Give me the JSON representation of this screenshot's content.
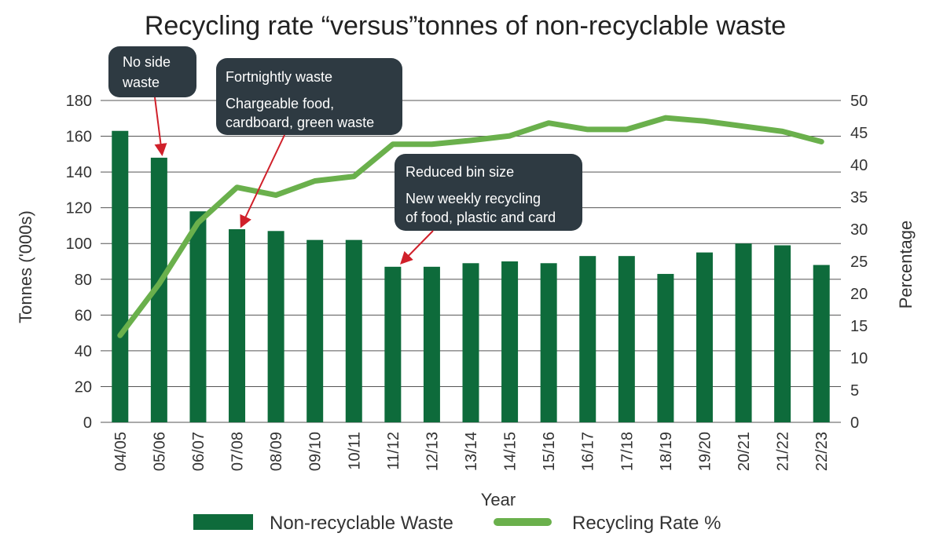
{
  "chart_data": {
    "type": "bar+line",
    "title": "Recycling rate “versus”tonnes of non-recyclable waste",
    "xlabel": "Year",
    "ylabel_left": "Tonnes ('000s)",
    "ylabel_right": "Percentage",
    "categories": [
      "04/05",
      "05/06",
      "06/07",
      "07/08",
      "08/09",
      "09/10",
      "10/11",
      "11/12",
      "12/13",
      "13/14",
      "14/15",
      "15/16",
      "16/17",
      "17/18",
      "18/19",
      "19/20",
      "20/21",
      "21/22",
      "22/23"
    ],
    "ylim_left": [
      0,
      180
    ],
    "yticks_left": [
      0,
      20,
      40,
      60,
      80,
      100,
      120,
      140,
      160,
      180
    ],
    "ylim_right": [
      0,
      50
    ],
    "yticks_right": [
      0,
      5,
      10,
      15,
      20,
      25,
      30,
      35,
      40,
      45,
      50
    ],
    "series": [
      {
        "name": "Non-recyclable Waste",
        "kind": "bar",
        "axis": "left",
        "color": "#0e6b3b",
        "values": [
          163,
          148,
          118,
          108,
          107,
          102,
          102,
          87,
          87,
          89,
          90,
          89,
          93,
          93,
          83,
          95,
          100,
          99,
          88
        ]
      },
      {
        "name": "Recycling Rate %",
        "kind": "line",
        "axis": "right",
        "color": "#6ab04c",
        "values": [
          13.5,
          21.5,
          31,
          36.5,
          35.3,
          37.5,
          38.2,
          43.2,
          43.2,
          43.8,
          44.5,
          46.5,
          45.5,
          45.5,
          47.3,
          46.8,
          46,
          45.2,
          43.6
        ]
      }
    ],
    "annotations": [
      {
        "lines": [
          "No side",
          "waste"
        ],
        "points_to": "05/06"
      },
      {
        "lines": [
          "Fortnightly waste",
          "Chargeable food,",
          "cardboard, green waste"
        ],
        "points_to": "07/08"
      },
      {
        "lines": [
          "Reduced bin size",
          "New weekly recycling",
          "of food, plastic and card"
        ],
        "points_to": "11/12"
      }
    ],
    "grid": true,
    "legend_position": "bottom"
  },
  "colors": {
    "callout_bg": "#2e3a42",
    "arrow": "#d0202a",
    "grid": "#555555"
  }
}
